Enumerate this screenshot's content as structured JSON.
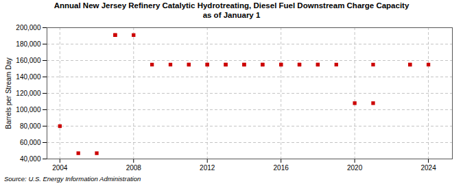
{
  "chart_data": {
    "type": "scatter",
    "title": "Annual New Jersey Refinery Catalytic Hydrotreating, Diesel Fuel Downstream Charge Capacity\nas of January 1",
    "ylabel": "Barrels per Stream Day",
    "source": "Source: U.S. Energy Information Administration",
    "x": [
      2004,
      2005,
      2006,
      2007,
      2007,
      2008,
      2009,
      2010,
      2011,
      2011,
      2012,
      2012,
      2013,
      2013,
      2014,
      2014,
      2015,
      2015,
      2016,
      2016,
      2017,
      2017,
      2018,
      2018,
      2019,
      2020,
      2021,
      2021,
      2023,
      2023,
      2024
    ],
    "values": [
      80000,
      47000,
      47000,
      191000,
      191000,
      191000,
      155000,
      155000,
      155000,
      155000,
      155000,
      155000,
      155000,
      155000,
      155000,
      155000,
      155000,
      155000,
      155000,
      155000,
      155000,
      155000,
      155000,
      155000,
      155000,
      108000,
      108000,
      155000,
      155000,
      155000,
      155000
    ],
    "color": "#cc0000",
    "marker": "square",
    "xlim": [
      2003.3,
      2025.3
    ],
    "ylim": [
      40000,
      200000
    ],
    "xticks": [
      2004,
      2008,
      2012,
      2016,
      2020,
      2024
    ],
    "yticks": [
      {
        "value": 40000,
        "label": "40,000"
      },
      {
        "value": 60000,
        "label": "60,000"
      },
      {
        "value": 80000,
        "label": "80,000"
      },
      {
        "value": 100000,
        "label": "100,000"
      },
      {
        "value": 120000,
        "label": "120,000"
      },
      {
        "value": 140000,
        "label": "140,000"
      },
      {
        "value": 160000,
        "label": "160,000"
      },
      {
        "value": 180000,
        "label": "180,000"
      },
      {
        "value": 200000,
        "label": "200,000"
      }
    ],
    "grid": true
  }
}
